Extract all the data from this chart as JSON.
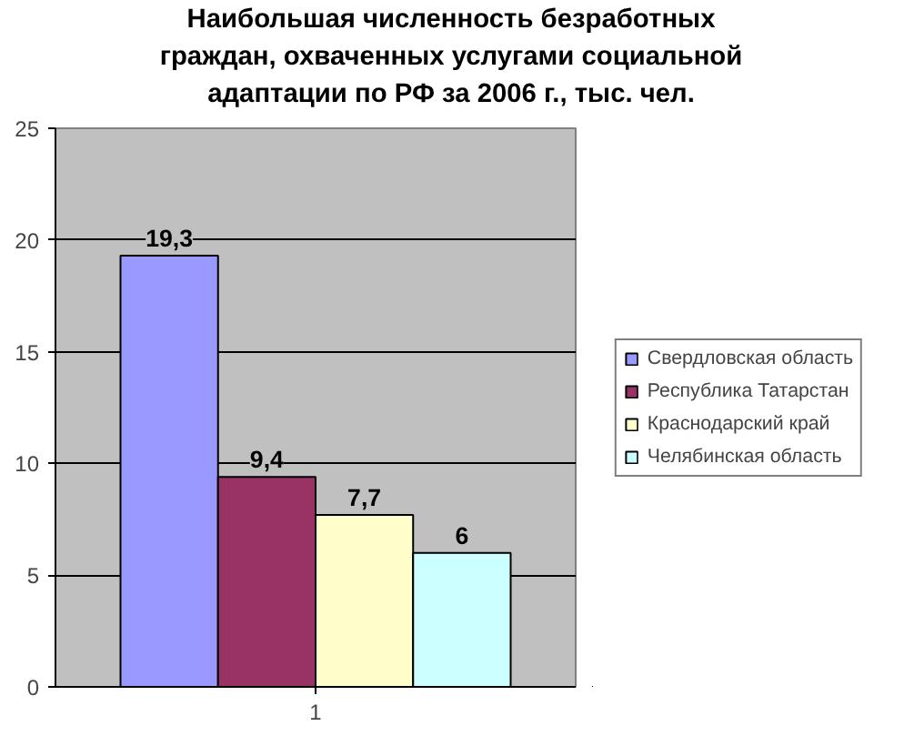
{
  "chart_data": {
    "type": "bar",
    "title": "Наибольшая численность безработных граждан, охваченных услугами социальной адаптации по РФ за 2006 г., тыс. чел.",
    "categories": [
      "1"
    ],
    "series": [
      {
        "name": "Свердловская область",
        "color": "#9999ff",
        "values": [
          19.3
        ],
        "value_labels": [
          "19,3"
        ]
      },
      {
        "name": "Республика Татарстан",
        "color": "#993366",
        "values": [
          9.4
        ],
        "value_labels": [
          "9,4"
        ]
      },
      {
        "name": "Краснодарский край",
        "color": "#ffffcc",
        "values": [
          7.7
        ],
        "value_labels": [
          "7,7"
        ]
      },
      {
        "name": "Челябинская область",
        "color": "#ccffff",
        "values": [
          6
        ],
        "value_labels": [
          "6"
        ]
      }
    ],
    "ylim": [
      0,
      25
    ],
    "yticks": [
      0,
      5,
      10,
      15,
      20,
      25
    ],
    "grid": "y",
    "legend": "right"
  }
}
